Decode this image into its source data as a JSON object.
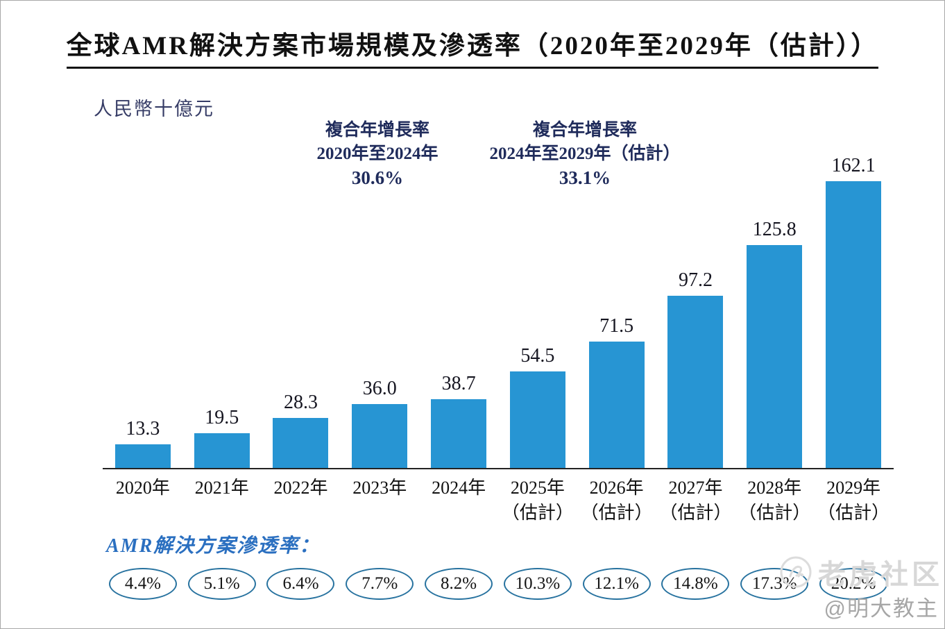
{
  "page": {
    "title": "全球AMR解決方案市場規模及滲透率（2020年至2029年（估計））",
    "unit_label": "人民幣十億元",
    "penetration_label": "AMR解決方案滲透率：",
    "watermark": {
      "brand": "老虎社区",
      "user": "@明大教主"
    }
  },
  "chart_data": {
    "type": "bar",
    "title": "全球AMR解決方案市場規模及滲透率（2020年至2029年（估計））",
    "ylabel": "人民幣十億元",
    "categories": [
      "2020年",
      "2021年",
      "2022年",
      "2023年",
      "2024年",
      "2025年（估計）",
      "2026年（估計）",
      "2027年（估計）",
      "2028年（估計）",
      "2029年（估計）"
    ],
    "series": [
      {
        "name": "全球AMR解決方案市場規模",
        "unit": "人民幣十億元",
        "values": [
          13.3,
          19.5,
          28.3,
          36.0,
          38.7,
          54.5,
          71.5,
          97.2,
          125.8,
          162.1
        ],
        "labels": [
          "13.3",
          "19.5",
          "28.3",
          "36.0",
          "38.7",
          "54.5",
          "71.5",
          "97.2",
          "125.8",
          "162.1"
        ]
      },
      {
        "name": "AMR解決方案滲透率",
        "labels": [
          "4.4%",
          "5.1%",
          "6.4%",
          "7.7%",
          "8.2%",
          "10.3%",
          "12.1%",
          "14.8%",
          "17.3%",
          "20.2%"
        ]
      }
    ],
    "ylim": [
      0,
      170
    ],
    "grid": false,
    "legend_position": "none",
    "bar_color": "#2795d3",
    "cagr": [
      {
        "line1": "複合年增長率",
        "line2": "2020年至2024年",
        "value": "30.6%"
      },
      {
        "line1": "複合年增長率",
        "line2": "2024年至2029年（估計）",
        "value": "33.1%"
      }
    ]
  }
}
